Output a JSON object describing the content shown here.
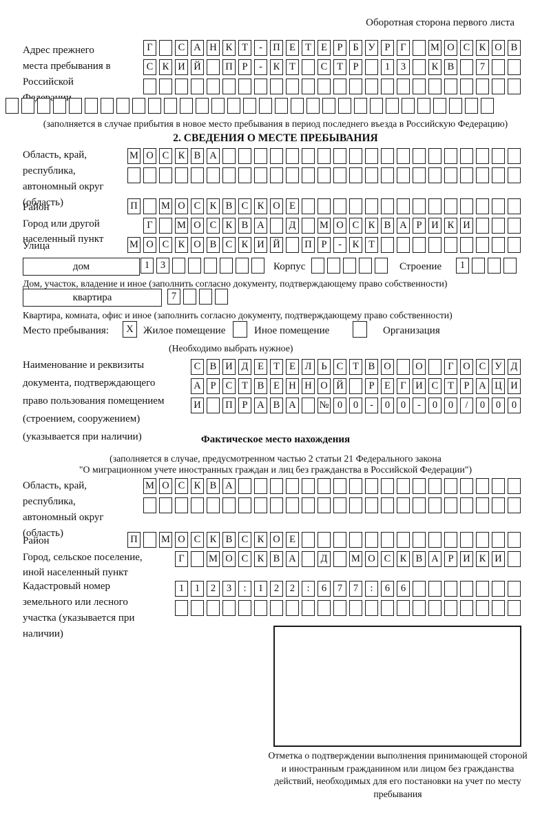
{
  "page": {
    "corner_note": "Оборотная сторона первого листа"
  },
  "section1": {
    "heading": "2. СВЕДЕНИЯ О МЕСТЕ ПРЕБЫВАНИЯ",
    "prev_address": {
      "label": "Адрес прежнего места пребывания в Российской Федерации",
      "row1": {
        "count": 24,
        "chars": [
          "Г",
          "",
          "С",
          "А",
          "Н",
          "К",
          "Т",
          "-",
          "П",
          "Е",
          "Т",
          "Е",
          "Р",
          "Б",
          "У",
          "Р",
          "Г",
          "",
          "М",
          "О",
          "С",
          "К",
          "О",
          "В"
        ]
      },
      "row2": {
        "count": 24,
        "chars": [
          "С",
          "К",
          "И",
          "Й",
          "",
          "П",
          "Р",
          "-",
          "К",
          "Т",
          "",
          "С",
          "Т",
          "Р",
          "",
          "1",
          "3",
          "",
          "К",
          "В",
          "",
          "7",
          "",
          ""
        ]
      },
      "row3": {
        "count": 24,
        "chars": []
      },
      "row4": {
        "count": 31,
        "chars": []
      },
      "note": "(заполняется в случае прибытия в новое место пребывания в период последнего въезда в Российскую Федерацию)"
    },
    "oblast": {
      "label": "Область, край, республика, автономный округ (область)",
      "row1": {
        "count": 25,
        "chars": [
          "М",
          "О",
          "С",
          "К",
          "В",
          "А"
        ]
      },
      "row2": {
        "count": 25,
        "chars": []
      }
    },
    "raion": {
      "label": "Район",
      "row": {
        "count": 25,
        "chars": [
          "П",
          "",
          "М",
          "О",
          "С",
          "К",
          "В",
          "С",
          "К",
          "О",
          "Е"
        ]
      }
    },
    "gorod": {
      "label": "Город или другой населенный пункт",
      "row": {
        "count": 24,
        "chars": [
          "Г",
          "",
          "М",
          "О",
          "С",
          "К",
          "В",
          "А",
          "",
          "Д",
          "",
          "М",
          "О",
          "С",
          "К",
          "В",
          "А",
          "Р",
          "И",
          "К",
          "И"
        ]
      }
    },
    "ulitsa": {
      "label": "Улица",
      "row": {
        "count": 25,
        "chars": [
          "М",
          "О",
          "С",
          "К",
          "О",
          "В",
          "С",
          "К",
          "И",
          "Й",
          "",
          "П",
          "Р",
          "-",
          "К",
          "Т"
        ]
      }
    },
    "dom": {
      "box_label": "дом",
      "row": {
        "count": 8,
        "chars": [
          "1",
          "3"
        ]
      },
      "korpus_label": "Корпус",
      "korpus_row": {
        "count": 5,
        "chars": []
      },
      "stroenie_label": "Строение",
      "stroenie_row": {
        "count": 4,
        "chars": [
          "1"
        ]
      },
      "note": "Дом, участок, владение и иное (заполнить согласно документу, подтверждающему право собственности)"
    },
    "kvartira": {
      "box_label": "квартира",
      "row": {
        "count": 4,
        "chars": [
          "7"
        ]
      },
      "note": "Квартира, комната, офис и иное (заполнить согласно документу, подтверждающему право собственности)"
    },
    "mesto": {
      "label": "Место пребывания:",
      "checked_mark": "X",
      "option1": "Жилое помещение",
      "option2": "Иное помещение",
      "option3": "Организация",
      "note": "(Необходимо выбрать нужное)"
    },
    "document": {
      "label": "Наименование и реквизиты документа, подтверждающего право пользования помещением (строением, сооружением) (указывается при наличии)",
      "row1": {
        "count": 21,
        "chars": [
          "С",
          "В",
          "И",
          "Д",
          "Е",
          "Т",
          "Е",
          "Л",
          "Ь",
          "С",
          "Т",
          "В",
          "О",
          "",
          "О",
          "",
          "Г",
          "О",
          "С",
          "У",
          "Д"
        ]
      },
      "row2": {
        "count": 21,
        "chars": [
          "А",
          "Р",
          "С",
          "Т",
          "В",
          "Е",
          "Н",
          "Н",
          "О",
          "Й",
          "",
          "Р",
          "Е",
          "Г",
          "И",
          "С",
          "Т",
          "Р",
          "А",
          "Ц",
          "И"
        ]
      },
      "row3": {
        "count": 21,
        "chars": [
          "И",
          "",
          "П",
          "Р",
          "А",
          "В",
          "А",
          "",
          "№",
          "0",
          "0",
          "-",
          "0",
          "0",
          "-",
          "0",
          "0",
          "/",
          "0",
          "0",
          "0"
        ]
      }
    }
  },
  "section2": {
    "heading": "Фактическое место нахождения",
    "note1": "(заполняется в случае, предусмотренном частью 2 статьи 21 Федерального закона",
    "note2": "\"О миграционном учете иностранных граждан и лиц без гражданства в Российской Федерации\")",
    "oblast": {
      "label": "Область, край, республика, автономный округ (область)",
      "row1": {
        "count": 24,
        "chars": [
          "М",
          "О",
          "С",
          "К",
          "В",
          "А"
        ]
      },
      "row2": {
        "count": 24,
        "chars": []
      }
    },
    "raion": {
      "label": "Район",
      "row": {
        "count": 25,
        "chars": [
          "П",
          "",
          "М",
          "О",
          "С",
          "К",
          "В",
          "С",
          "К",
          "О",
          "Е"
        ]
      }
    },
    "gorod": {
      "label": "Город, сельское поселение, иной населенный пункт",
      "row": {
        "count": 22,
        "chars": [
          "Г",
          "",
          "М",
          "О",
          "С",
          "К",
          "В",
          "А",
          "",
          "Д",
          "",
          "М",
          "О",
          "С",
          "К",
          "В",
          "А",
          "Р",
          "И",
          "К",
          "И"
        ]
      }
    },
    "kadastr": {
      "label": "Кадастровый номер земельного или лесного участка (указывается при наличии)",
      "row1": {
        "count": 22,
        "chars": [
          "1",
          "1",
          "2",
          "3",
          ":",
          "1",
          "2",
          "2",
          ":",
          "6",
          "7",
          "7",
          ":",
          "6",
          "6"
        ]
      },
      "row2": {
        "count": 22,
        "chars": []
      }
    },
    "stamp_note": "Отметка о подтверждении выполнения принимающей стороной и иностранным гражданином или лицом без гражданства действий, необходимых для его постановки на учет по месту пребывания"
  }
}
